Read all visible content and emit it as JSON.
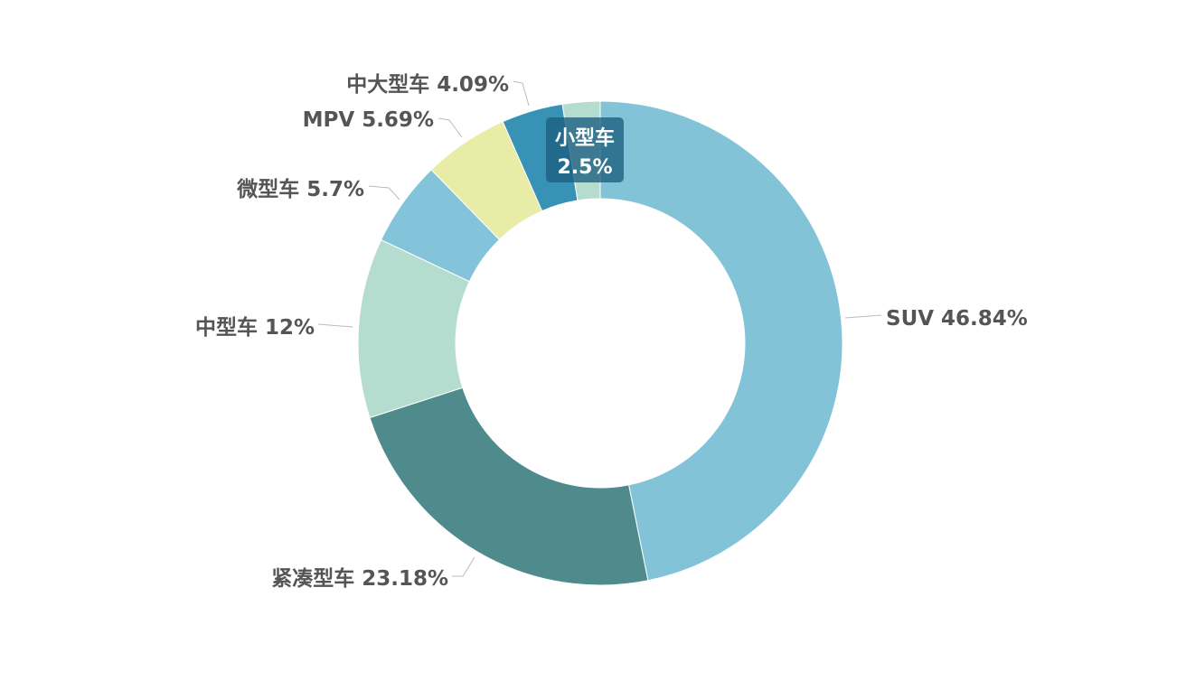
{
  "chart_data": {
    "type": "pie",
    "variant": "donut",
    "slices": [
      {
        "name": "SUV",
        "value": 46.84,
        "label": "SUV 46.84%",
        "color": "#82c3d8"
      },
      {
        "name": "紧凑型车",
        "value": 23.18,
        "label": "紧凑型车 23.18%",
        "color": "#4f8b8d"
      },
      {
        "name": "中型车",
        "value": 12,
        "label": "中型车 12%",
        "color": "#b4dccf"
      },
      {
        "name": "微型车",
        "value": 5.7,
        "label": "微型车 5.7%",
        "color": "#84c4db"
      },
      {
        "name": "MPV",
        "value": 5.69,
        "label": "MPV 5.69%",
        "color": "#e9eca6"
      },
      {
        "name": "中大型车",
        "value": 4.09,
        "label": "中大型车 4.09%",
        "color": "#3792b6"
      },
      {
        "name": "小型车",
        "value": 2.5,
        "label": "",
        "color": "#b4dccf"
      }
    ],
    "highlight": {
      "name": "小型车",
      "value_label": "2.5%"
    }
  }
}
